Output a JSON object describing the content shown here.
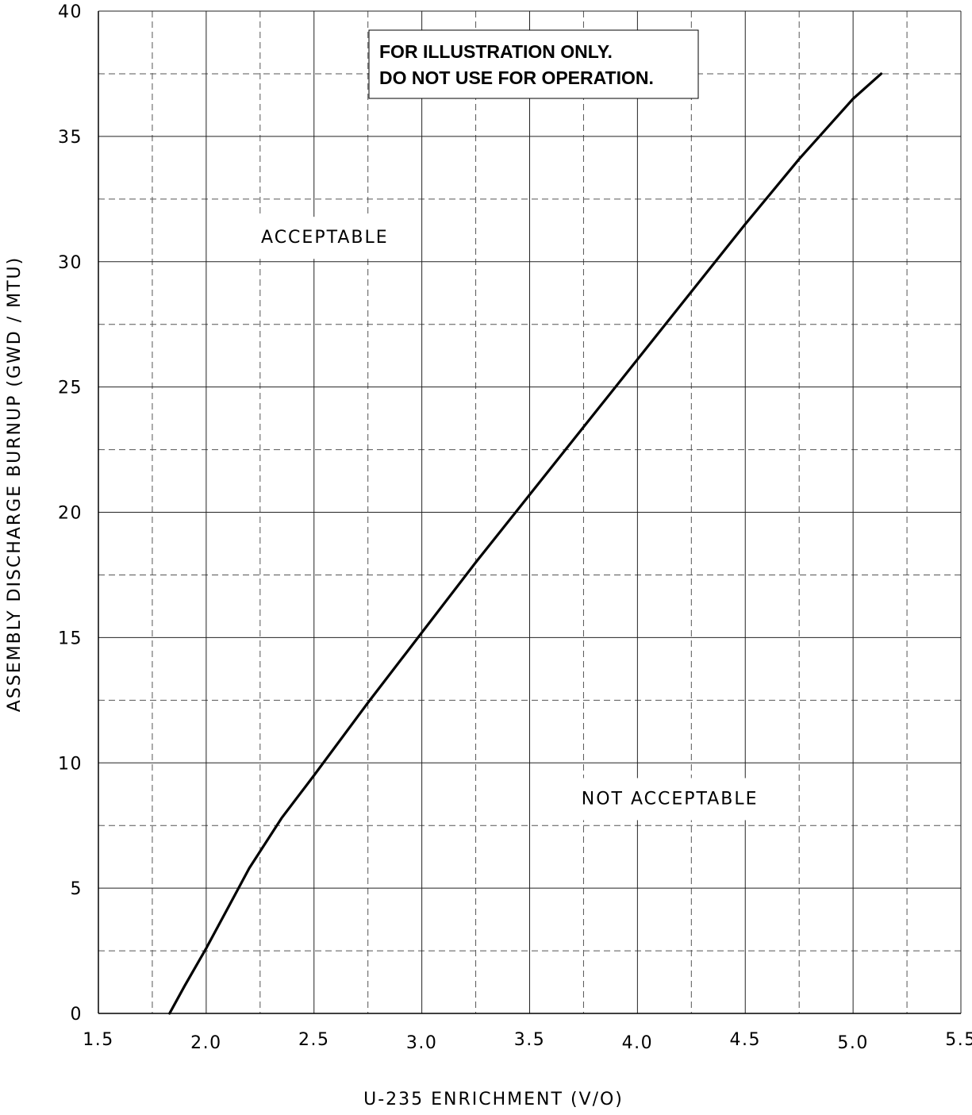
{
  "chart_data": {
    "type": "line",
    "title": "",
    "xlabel": "U-235 ENRICHMENT (V/O)",
    "ylabel": "ASSEMBLY DISCHARGE BURNUP (GWD / MTU)",
    "xlim": [
      1.5,
      5.5
    ],
    "ylim": [
      0,
      40
    ],
    "x_ticks": [
      "1.5",
      "2.0",
      "2.5",
      "3.0",
      "3.5",
      "4.0",
      "4.5",
      "5.0",
      "5.5"
    ],
    "y_ticks": [
      "0",
      "5",
      "10",
      "15",
      "20",
      "25",
      "30",
      "35",
      "40"
    ],
    "grid": true,
    "grid_major_style": "solid",
    "grid_minor_style": "dashed",
    "series": [
      {
        "x": [
          1.83,
          1.9,
          2.0,
          2.1,
          2.2,
          2.35,
          2.5,
          2.75,
          3.0,
          3.25,
          3.5,
          3.75,
          4.0,
          4.25,
          4.5,
          4.75,
          5.0,
          5.13
        ],
        "y": [
          0,
          1.1,
          2.6,
          4.2,
          5.8,
          7.8,
          9.5,
          12.4,
          15.2,
          18.0,
          20.7,
          23.4,
          26.1,
          28.8,
          31.5,
          34.1,
          36.5,
          37.5
        ],
        "color": "#000000"
      }
    ],
    "annotations": [
      {
        "text": "ACCEPTABLE",
        "x": 2.55,
        "y": 31.0
      },
      {
        "text": "NOT ACCEPTABLE",
        "x": 4.15,
        "y": 8.6
      }
    ],
    "note": {
      "line1": "FOR ILLUSTRATION ONLY.",
      "line2": "DO NOT USE FOR OPERATION."
    }
  }
}
